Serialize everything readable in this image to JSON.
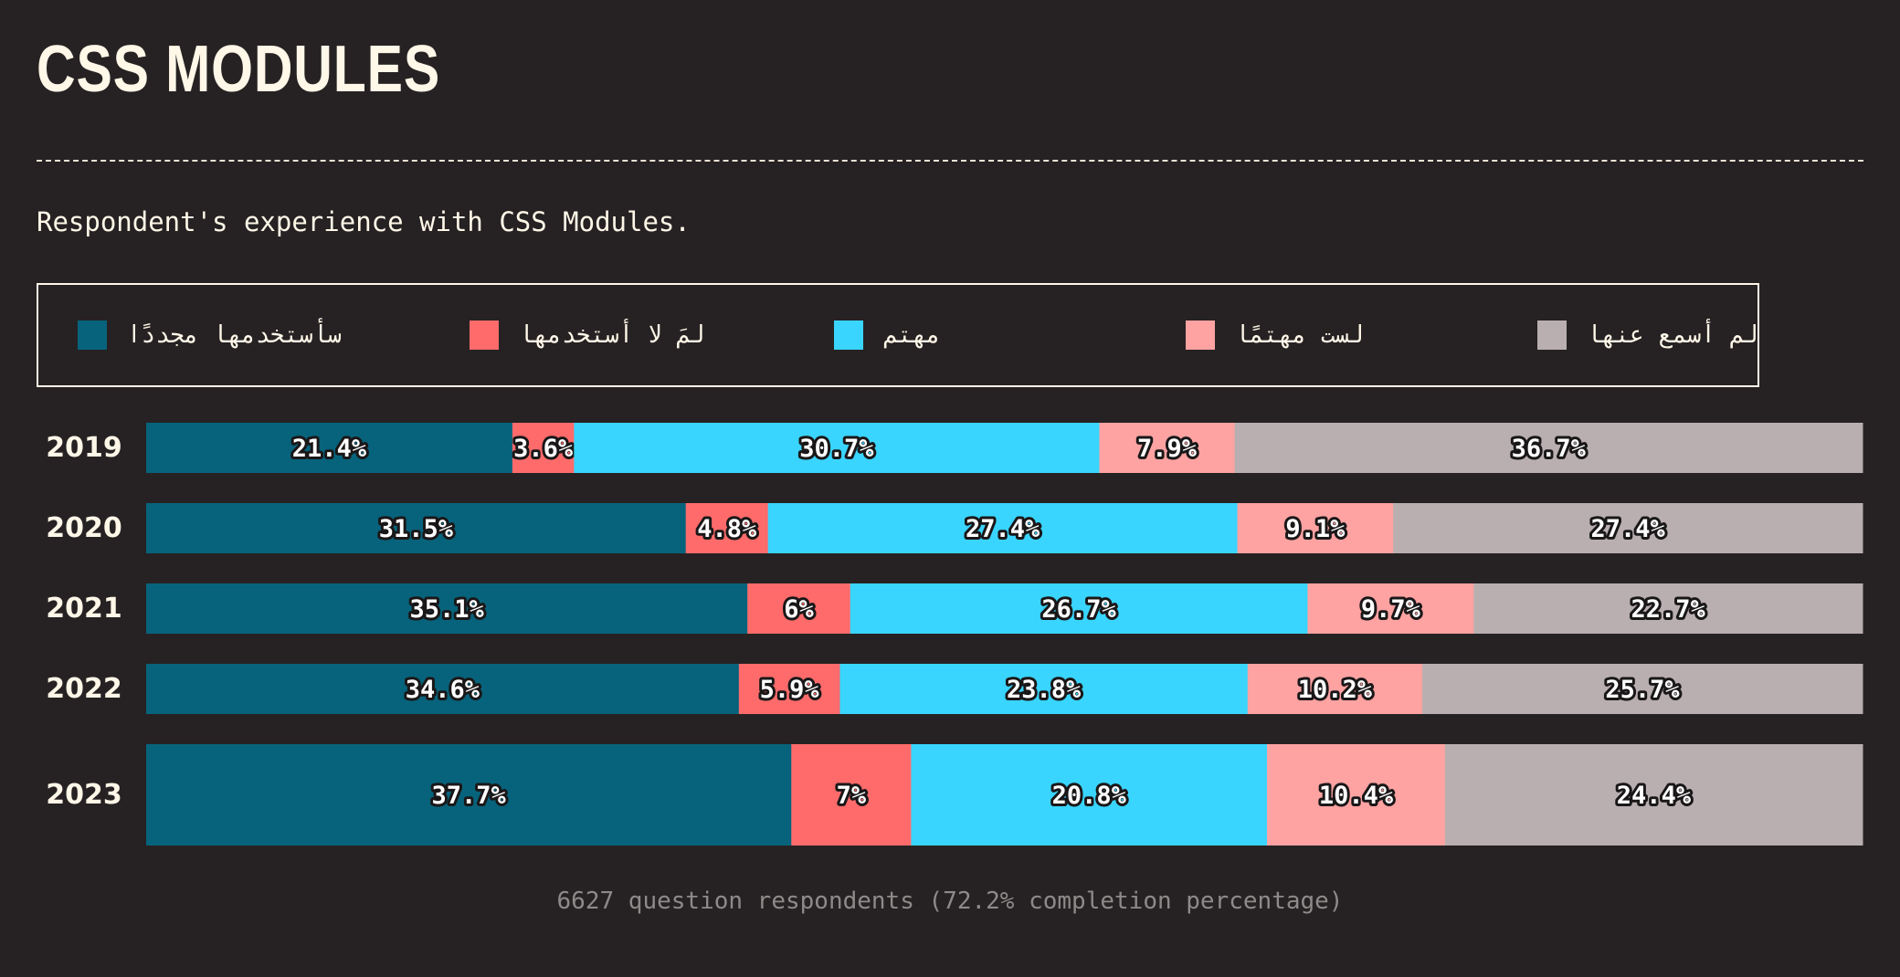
{
  "title": "CSS MODULES",
  "subtitle": "Respondent's experience with CSS Modules.",
  "footer": "6627 question respondents (72.2% completion percentage)",
  "colors": {
    "background": "#262223",
    "text": "#fff7e8"
  },
  "chart_data": {
    "type": "bar",
    "orientation": "horizontal",
    "stacked": true,
    "normalized": true,
    "categories": [
      "2019",
      "2020",
      "2021",
      "2022",
      "2023"
    ],
    "legend_position": "top",
    "series": [
      {
        "name": "سأستخدمها مجددًا",
        "color": "#07637c",
        "values": [
          21.4,
          31.5,
          35.1,
          34.6,
          37.7
        ]
      },
      {
        "name": "لمَ لا أستخدمها",
        "color": "#ff6b6b",
        "values": [
          3.6,
          4.8,
          6,
          5.9,
          7
        ]
      },
      {
        "name": "مهتم",
        "color": "#39d5ff",
        "values": [
          30.7,
          27.4,
          26.7,
          23.8,
          20.8
        ]
      },
      {
        "name": "لست مهتمًا",
        "color": "#ffa2a2",
        "values": [
          7.9,
          9.1,
          9.7,
          10.2,
          10.4
        ]
      },
      {
        "name": "لم أسمع عنها",
        "color": "#b9afb0",
        "values": [
          36.7,
          27.4,
          22.7,
          25.7,
          24.4
        ]
      }
    ]
  }
}
